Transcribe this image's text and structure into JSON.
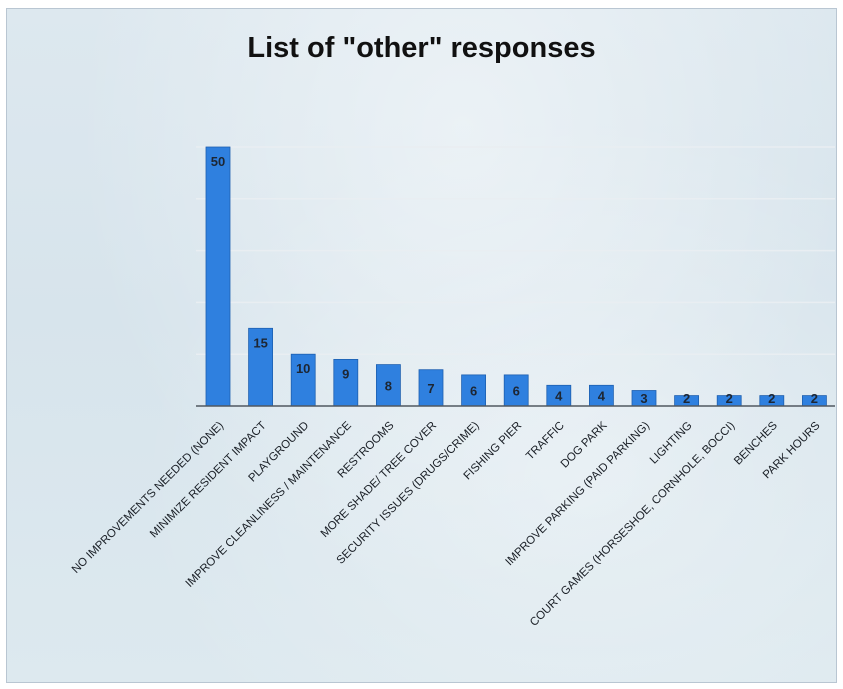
{
  "chart_data": {
    "type": "bar",
    "title": "List of \"other\" responses",
    "categories": [
      "NO IMPROVEMENTS NEEDED (NONE)",
      "MINIMIZE RESIDENT IMPACT",
      "PLAYGROUND",
      "IMPROVE CLEANLINESS / MAINTENANCE",
      "RESTROOMS",
      "MORE SHADE/ TREE COVER",
      "SECURITY ISSUES (DRUGS/CRIME)",
      "FISHING PIER",
      "TRAFFIC",
      "DOG PARK",
      "IMPROVE PARKING (PAID PARKING)",
      "LIGHTING",
      "COURT GAMES (HORSESHOE, CORNHOLE, BOCCI)",
      "BENCHES",
      "PARK HOURS"
    ],
    "values": [
      50,
      15,
      10,
      9,
      8,
      7,
      6,
      6,
      4,
      4,
      3,
      2,
      2,
      2,
      2
    ],
    "data_labels": [
      "50",
      "15",
      "10",
      "9",
      "8",
      "7",
      "6",
      "6",
      "4",
      "4",
      "3",
      "2",
      "2",
      "2",
      "2"
    ],
    "xlabel": "",
    "ylabel": "",
    "ylim": [
      0,
      50
    ],
    "grid": true,
    "legend": "none",
    "colors": {
      "bar": "#2f80df",
      "bar_edge": "#1d5fb0",
      "grid": "#e9eef2",
      "axis": "#505860"
    }
  }
}
